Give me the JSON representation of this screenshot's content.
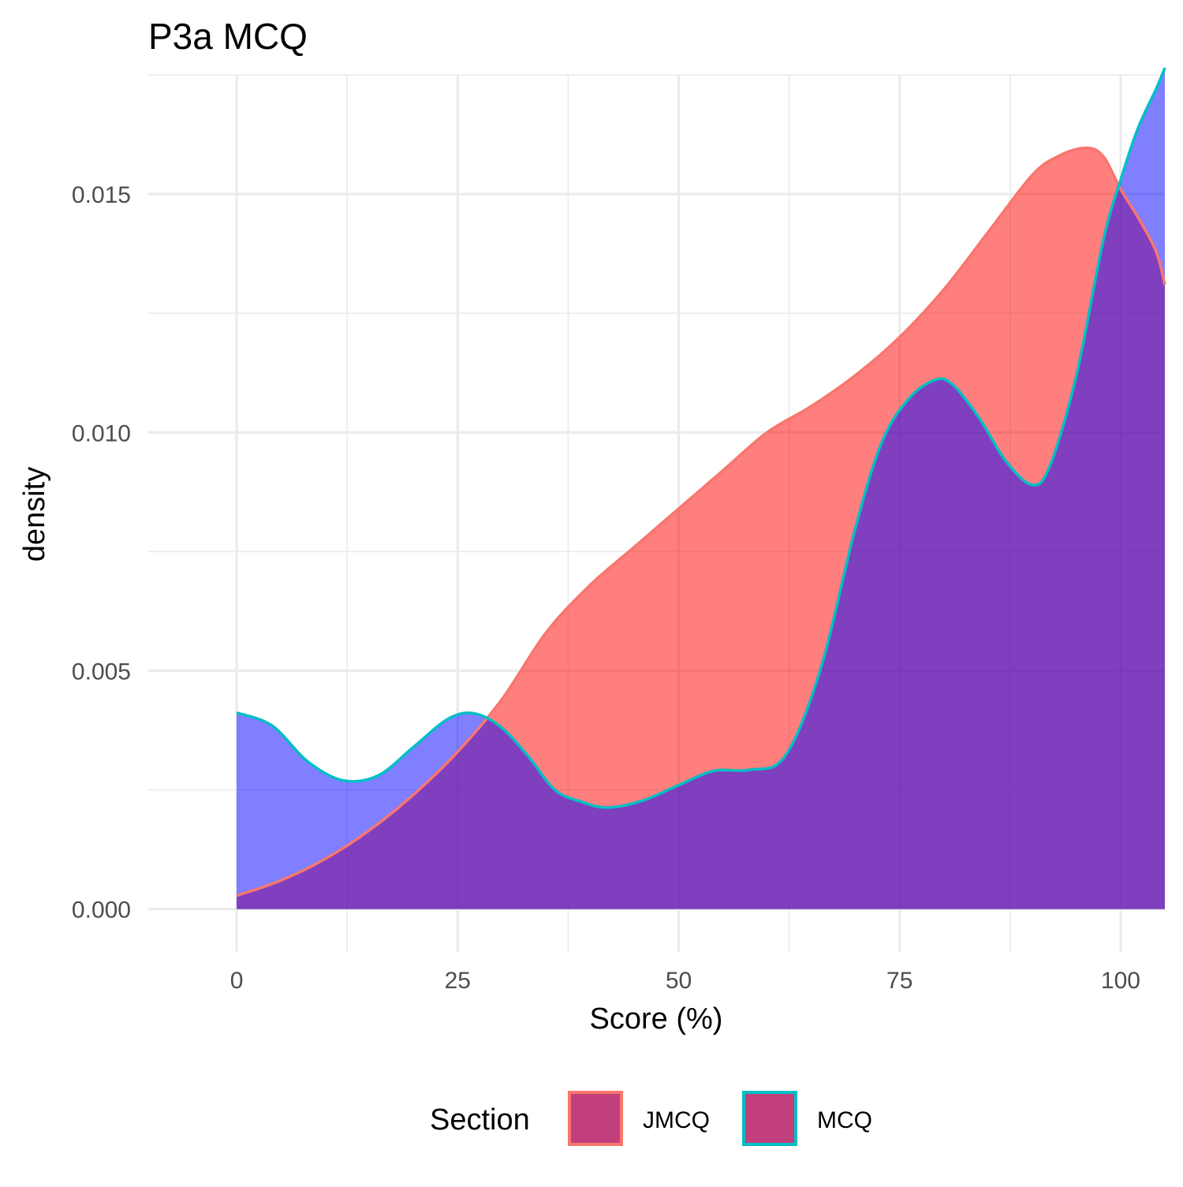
{
  "chart_data": {
    "type": "area",
    "title": "P3a MCQ",
    "xlabel": "Score (%)",
    "ylabel": "density",
    "xlim": [
      -10,
      105
    ],
    "ylim": [
      -0.0009,
      0.0175
    ],
    "x_ticks": [
      0,
      25,
      50,
      75,
      100
    ],
    "x_tick_labels": [
      "0",
      "25",
      "50",
      "75",
      "100"
    ],
    "y_ticks": [
      0.0,
      0.005,
      0.01,
      0.015
    ],
    "y_tick_labels": [
      "0.000",
      "0.005",
      "0.010",
      "0.015"
    ],
    "grid": true,
    "legend": {
      "title": "Section",
      "position": "bottom"
    },
    "colors": {
      "jmcq_line": "#F8766D",
      "mcq_line": "#00BFC4",
      "fill_a": "#FF0000",
      "fill_b": "#0000FF",
      "overlap_fill": "#C03F7C",
      "grid": "#EBEBEB",
      "tick_text": "#4D4D4D"
    },
    "series": [
      {
        "name": "JMCQ",
        "x": [
          0,
          5,
          10,
          15,
          20,
          25,
          30,
          35,
          40,
          45,
          50,
          55,
          60,
          65,
          70,
          75,
          80,
          85,
          90,
          93,
          96,
          98,
          100,
          102,
          104,
          105
        ],
        "y": [
          0.00028,
          0.0006,
          0.00105,
          0.00165,
          0.0024,
          0.0033,
          0.0044,
          0.0058,
          0.0068,
          0.0076,
          0.0084,
          0.0092,
          0.01,
          0.01055,
          0.0112,
          0.012,
          0.013,
          0.0142,
          0.0154,
          0.0158,
          0.01597,
          0.0158,
          0.0151,
          0.0145,
          0.0138,
          0.0131
        ]
      },
      {
        "name": "MCQ",
        "x": [
          0,
          4,
          8,
          12,
          16,
          20,
          24,
          27,
          30,
          33,
          36,
          39,
          42,
          46,
          50,
          54,
          58,
          62,
          66,
          70,
          73,
          76,
          79,
          81,
          84,
          87,
          90,
          92,
          95,
          98,
          100,
          102,
          104,
          105
        ],
        "y": [
          0.00412,
          0.00385,
          0.0031,
          0.0027,
          0.0028,
          0.0034,
          0.004,
          0.0041,
          0.0038,
          0.0032,
          0.0025,
          0.00225,
          0.00213,
          0.00228,
          0.0026,
          0.0029,
          0.00292,
          0.0032,
          0.005,
          0.008,
          0.0098,
          0.0107,
          0.0111,
          0.011,
          0.0103,
          0.0094,
          0.0089,
          0.0093,
          0.0112,
          0.014,
          0.0153,
          0.0164,
          0.0172,
          0.01765
        ]
      }
    ]
  }
}
